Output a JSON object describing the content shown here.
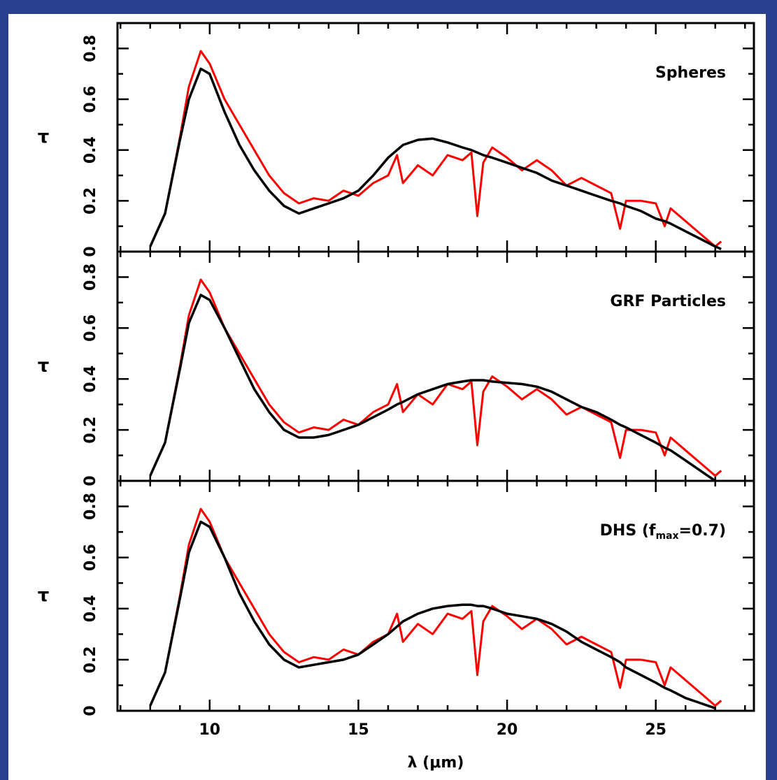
{
  "chart_data": [
    {
      "type": "line",
      "annotation": [
        "Spheres"
      ],
      "ylabel": "τ",
      "x": [
        8.0,
        8.5,
        9.0,
        9.3,
        9.7,
        10.0,
        10.5,
        11.0,
        11.5,
        12.0,
        12.5,
        13.0,
        13.5,
        14.0,
        14.5,
        15.0,
        15.5,
        16.0,
        16.3,
        16.5,
        17.0,
        17.5,
        18.0,
        18.5,
        18.8,
        19.0,
        19.2,
        19.5,
        20.0,
        20.5,
        21.0,
        21.5,
        22.0,
        22.5,
        23.0,
        23.5,
        23.8,
        24.0,
        24.5,
        25.0,
        25.3,
        25.5,
        26.0,
        26.5,
        27.0,
        27.2
      ],
      "series": [
        {
          "color": "#ff0000",
          "values": [
            0.02,
            0.15,
            0.45,
            0.65,
            0.79,
            0.74,
            0.6,
            0.5,
            0.4,
            0.3,
            0.23,
            0.19,
            0.21,
            0.2,
            0.24,
            0.22,
            0.27,
            0.3,
            0.38,
            0.27,
            0.34,
            0.3,
            0.38,
            0.36,
            0.39,
            0.14,
            0.35,
            0.41,
            0.37,
            0.32,
            0.36,
            0.32,
            0.26,
            0.29,
            0.26,
            0.23,
            0.09,
            0.2,
            0.2,
            0.19,
            0.1,
            0.17,
            0.12,
            0.07,
            0.02,
            0.04
          ]
        },
        {
          "color": "#000000",
          "values": [
            0.02,
            0.15,
            0.44,
            0.6,
            0.72,
            0.7,
            0.55,
            0.42,
            0.32,
            0.24,
            0.18,
            0.15,
            0.17,
            0.19,
            0.21,
            0.24,
            0.3,
            0.37,
            0.4,
            0.42,
            0.44,
            0.445,
            0.43,
            0.41,
            0.4,
            0.39,
            0.38,
            0.37,
            0.35,
            0.33,
            0.31,
            0.28,
            0.26,
            0.24,
            0.22,
            0.2,
            0.19,
            0.18,
            0.16,
            0.13,
            0.12,
            0.11,
            0.08,
            0.05,
            0.02,
            0.01
          ]
        }
      ],
      "xlim": [
        6.9,
        28.3
      ],
      "xticks": [
        10,
        15,
        20,
        25
      ],
      "xminorticks": [
        7,
        8,
        9,
        11,
        12,
        13,
        14,
        16,
        17,
        18,
        19,
        21,
        22,
        23,
        24,
        26,
        27,
        28
      ],
      "ylim": [
        0,
        0.9
      ],
      "yticks": [
        0,
        0.2,
        0.4,
        0.6,
        0.8
      ],
      "yminorticks": [
        0.1,
        0.3,
        0.5,
        0.7
      ]
    },
    {
      "type": "line",
      "annotation": [
        "GRF Particles"
      ],
      "ylabel": "τ",
      "x": [
        8.0,
        8.5,
        9.0,
        9.3,
        9.7,
        10.0,
        10.5,
        11.0,
        11.5,
        12.0,
        12.5,
        13.0,
        13.5,
        14.0,
        14.5,
        15.0,
        15.5,
        16.0,
        16.3,
        16.5,
        17.0,
        17.5,
        18.0,
        18.5,
        18.8,
        19.0,
        19.2,
        19.5,
        20.0,
        20.5,
        21.0,
        21.5,
        22.0,
        22.5,
        23.0,
        23.5,
        23.8,
        24.0,
        24.5,
        25.0,
        25.3,
        25.5,
        26.0,
        26.5,
        27.0,
        27.2
      ],
      "series": [
        {
          "color": "#ff0000",
          "values": [
            0.02,
            0.15,
            0.45,
            0.65,
            0.79,
            0.74,
            0.6,
            0.5,
            0.4,
            0.3,
            0.23,
            0.19,
            0.21,
            0.2,
            0.24,
            0.22,
            0.27,
            0.3,
            0.38,
            0.27,
            0.34,
            0.3,
            0.38,
            0.36,
            0.39,
            0.14,
            0.35,
            0.41,
            0.37,
            0.32,
            0.36,
            0.32,
            0.26,
            0.29,
            0.26,
            0.23,
            0.09,
            0.2,
            0.2,
            0.19,
            0.1,
            0.17,
            0.12,
            0.07,
            0.02,
            0.04
          ]
        },
        {
          "color": "#000000",
          "values": [
            0.02,
            0.15,
            0.44,
            0.62,
            0.73,
            0.71,
            0.6,
            0.48,
            0.36,
            0.27,
            0.2,
            0.17,
            0.17,
            0.18,
            0.2,
            0.22,
            0.25,
            0.28,
            0.3,
            0.31,
            0.34,
            0.36,
            0.38,
            0.39,
            0.395,
            0.395,
            0.395,
            0.39,
            0.385,
            0.38,
            0.37,
            0.35,
            0.32,
            0.29,
            0.27,
            0.24,
            0.22,
            0.21,
            0.18,
            0.15,
            0.13,
            0.12,
            0.08,
            0.04,
            0.0,
            null
          ]
        }
      ],
      "xlim": [
        6.9,
        28.3
      ],
      "xticks": [
        10,
        15,
        20,
        25
      ],
      "xminorticks": [
        7,
        8,
        9,
        11,
        12,
        13,
        14,
        16,
        17,
        18,
        19,
        21,
        22,
        23,
        24,
        26,
        27,
        28
      ],
      "ylim": [
        0,
        0.9
      ],
      "yticks": [
        0,
        0.2,
        0.4,
        0.6,
        0.8
      ],
      "yminorticks": [
        0.1,
        0.3,
        0.5,
        0.7
      ]
    },
    {
      "type": "line",
      "annotation": [
        "DHS (f",
        "max",
        "=0.7)"
      ],
      "ylabel": "τ",
      "xlabel": "λ (μm)",
      "xtick_labels": true,
      "x": [
        8.0,
        8.5,
        9.0,
        9.3,
        9.7,
        10.0,
        10.5,
        11.0,
        11.5,
        12.0,
        12.5,
        13.0,
        13.5,
        14.0,
        14.5,
        15.0,
        15.5,
        16.0,
        16.3,
        16.5,
        17.0,
        17.5,
        18.0,
        18.5,
        18.8,
        19.0,
        19.2,
        19.5,
        20.0,
        20.5,
        21.0,
        21.5,
        22.0,
        22.5,
        23.0,
        23.5,
        23.8,
        24.0,
        24.5,
        25.0,
        25.3,
        25.5,
        26.0,
        26.5,
        27.0,
        27.2
      ],
      "series": [
        {
          "color": "#ff0000",
          "values": [
            0.02,
            0.15,
            0.45,
            0.65,
            0.79,
            0.74,
            0.6,
            0.5,
            0.4,
            0.3,
            0.23,
            0.19,
            0.21,
            0.2,
            0.24,
            0.22,
            0.27,
            0.3,
            0.38,
            0.27,
            0.34,
            0.3,
            0.38,
            0.36,
            0.39,
            0.14,
            0.35,
            0.41,
            0.37,
            0.32,
            0.36,
            0.32,
            0.26,
            0.29,
            0.26,
            0.23,
            0.09,
            0.2,
            0.2,
            0.19,
            0.1,
            0.17,
            0.12,
            0.07,
            0.02,
            0.04
          ]
        },
        {
          "color": "#000000",
          "values": [
            0.02,
            0.15,
            0.44,
            0.62,
            0.74,
            0.72,
            0.6,
            0.46,
            0.35,
            0.26,
            0.2,
            0.17,
            0.18,
            0.19,
            0.2,
            0.22,
            0.26,
            0.3,
            0.33,
            0.35,
            0.38,
            0.4,
            0.41,
            0.415,
            0.415,
            0.41,
            0.41,
            0.4,
            0.38,
            0.37,
            0.36,
            0.34,
            0.31,
            0.27,
            0.24,
            0.21,
            0.19,
            0.17,
            0.14,
            0.11,
            0.09,
            0.08,
            0.05,
            0.03,
            0.01,
            null
          ]
        }
      ],
      "xlim": [
        6.9,
        28.3
      ],
      "xticks": [
        10,
        15,
        20,
        25
      ],
      "xminorticks": [
        7,
        8,
        9,
        11,
        12,
        13,
        14,
        16,
        17,
        18,
        19,
        21,
        22,
        23,
        24,
        26,
        27,
        28
      ],
      "ylim": [
        0,
        0.9
      ],
      "yticks": [
        0,
        0.2,
        0.4,
        0.6,
        0.8
      ],
      "yminorticks": [
        0.1,
        0.3,
        0.5,
        0.7
      ]
    }
  ]
}
